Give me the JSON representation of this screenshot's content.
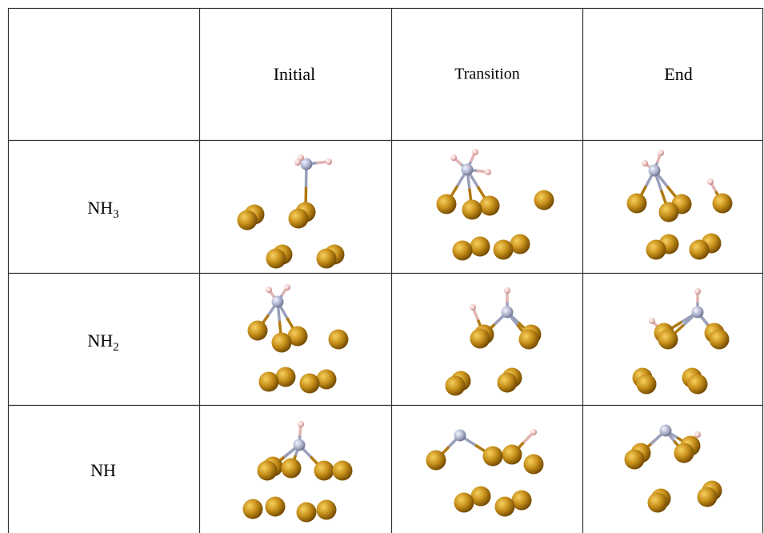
{
  "table": {
    "columns": [
      "Initial",
      "Transition",
      "End"
    ],
    "rows": [
      {
        "label": "NH",
        "subscript": "3"
      },
      {
        "label": "NH",
        "subscript": "2"
      },
      {
        "label": "NH"
      }
    ]
  }
}
